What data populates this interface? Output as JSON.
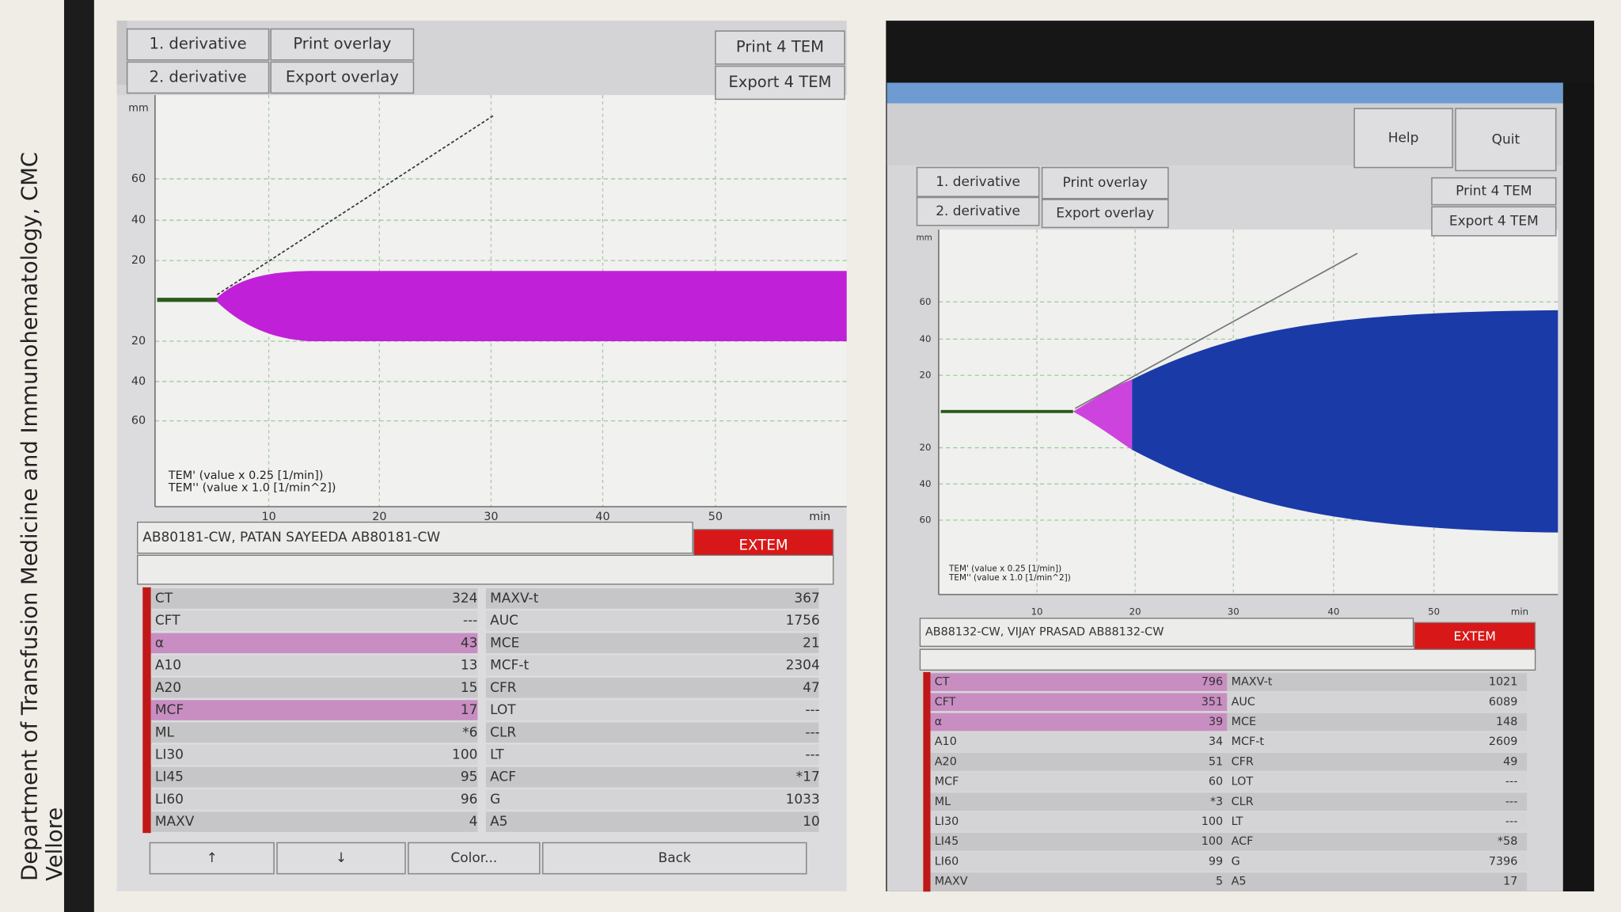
{
  "slide": {
    "caption": [
      "Department of Transfusion Medicine and Immunohematology, CMC",
      "Vellore"
    ]
  },
  "panels": [
    {
      "buttons": [
        "1. derivative",
        "2. derivative",
        "Print overlay",
        "Export overlay",
        "Print 4 TEM",
        "Export 4 TEM"
      ],
      "units": "mm",
      "y_axis_labels": [
        "60",
        "40",
        "20",
        "20",
        "40",
        "60"
      ],
      "x_axis_labels": [
        "10",
        "20",
        "30",
        "40",
        "50",
        "min"
      ],
      "legend": [
        "TEM' (value x 0.25  [1/min])",
        "TEM'' (value x 1.0  [1/min^2])"
      ],
      "sample": "AB80181-CW, PATAN SAYEEDA   AB80181-CW",
      "assay": "EXTEM",
      "table": {
        "left": [
          [
            "CT",
            "324"
          ],
          [
            "CFT",
            "---"
          ],
          [
            "α",
            "43"
          ],
          [
            "A10",
            "13"
          ],
          [
            "A20",
            "15"
          ],
          [
            "MCF",
            "17"
          ],
          [
            "ML",
            "*6"
          ],
          [
            "LI30",
            "100"
          ],
          [
            "LI45",
            "95"
          ],
          [
            "LI60",
            "96"
          ],
          [
            "MAXV",
            "4"
          ]
        ],
        "right": [
          [
            "MAXV-t",
            "367"
          ],
          [
            "AUC",
            "1756"
          ],
          [
            "MCE",
            "21"
          ],
          [
            "MCF-t",
            "2304"
          ],
          [
            "CFR",
            "47"
          ],
          [
            "LOT",
            "---"
          ],
          [
            "CLR",
            "---"
          ],
          [
            "LT",
            "---"
          ],
          [
            "ACF",
            "*17"
          ],
          [
            "G",
            "1033"
          ],
          [
            "A5",
            "10"
          ]
        ]
      },
      "footer_buttons": [
        "↑",
        "↓",
        "Color...",
        "Back"
      ]
    },
    {
      "window_buttons": [
        "Help",
        "Quit"
      ],
      "buttons": [
        "1. derivative",
        "2. derivative",
        "Print overlay",
        "Export overlay",
        "Print 4 TEM",
        "Export 4 TEM"
      ],
      "units": "mm",
      "y_axis_labels": [
        "60",
        "40",
        "20",
        "20",
        "40",
        "60"
      ],
      "x_axis_labels": [
        "10",
        "20",
        "30",
        "40",
        "50",
        "min"
      ],
      "legend": [
        "TEM' (value x 0.25  [1/min])",
        "TEM'' (value x 1.0  [1/min^2])"
      ],
      "sample": "AB88132-CW, VIJAY PRASAD   AB88132-CW",
      "assay": "EXTEM",
      "table": {
        "left": [
          [
            "CT",
            "796"
          ],
          [
            "CFT",
            "351"
          ],
          [
            "α",
            "39"
          ],
          [
            "A10",
            "34"
          ],
          [
            "A20",
            "51"
          ],
          [
            "MCF",
            "60"
          ],
          [
            "ML",
            "*3"
          ],
          [
            "LI30",
            "100"
          ],
          [
            "LI45",
            "100"
          ],
          [
            "LI60",
            "99"
          ],
          [
            "MAXV",
            "5"
          ]
        ],
        "right": [
          [
            "MAXV-t",
            "1021"
          ],
          [
            "AUC",
            "6089"
          ],
          [
            "MCE",
            "148"
          ],
          [
            "MCF-t",
            "2609"
          ],
          [
            "CFR",
            "49"
          ],
          [
            "LOT",
            "---"
          ],
          [
            "CLR",
            "---"
          ],
          [
            "LT",
            "---"
          ],
          [
            "ACF",
            "*58"
          ],
          [
            "G",
            "7396"
          ],
          [
            "A5",
            "17"
          ]
        ]
      }
    }
  ]
}
